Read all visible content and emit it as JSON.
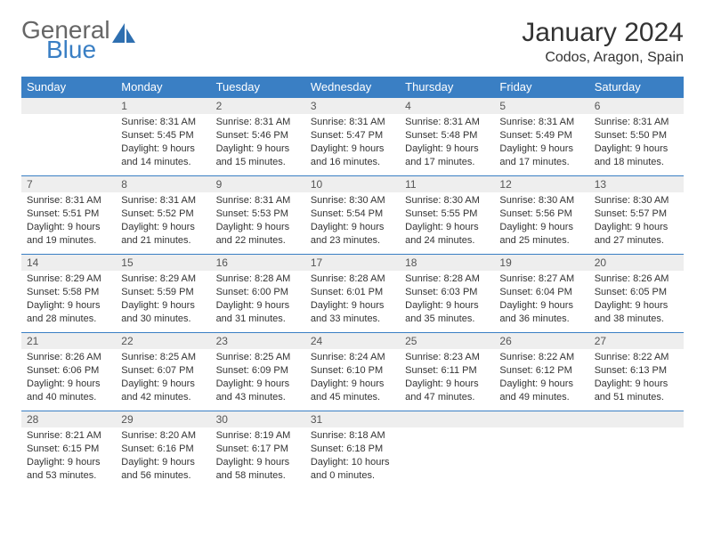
{
  "logo": {
    "text1": "General",
    "text2": "Blue"
  },
  "title": "January 2024",
  "location": "Codos, Aragon, Spain",
  "colors": {
    "header_bg": "#3a7fc4",
    "header_text": "#ffffff",
    "daynum_bg": "#eeeeee",
    "row_border": "#3a7fc4"
  },
  "daynames": [
    "Sunday",
    "Monday",
    "Tuesday",
    "Wednesday",
    "Thursday",
    "Friday",
    "Saturday"
  ],
  "weeks": [
    [
      {
        "n": "",
        "lines": [
          "",
          "",
          "",
          ""
        ]
      },
      {
        "n": "1",
        "lines": [
          "Sunrise: 8:31 AM",
          "Sunset: 5:45 PM",
          "Daylight: 9 hours",
          "and 14 minutes."
        ]
      },
      {
        "n": "2",
        "lines": [
          "Sunrise: 8:31 AM",
          "Sunset: 5:46 PM",
          "Daylight: 9 hours",
          "and 15 minutes."
        ]
      },
      {
        "n": "3",
        "lines": [
          "Sunrise: 8:31 AM",
          "Sunset: 5:47 PM",
          "Daylight: 9 hours",
          "and 16 minutes."
        ]
      },
      {
        "n": "4",
        "lines": [
          "Sunrise: 8:31 AM",
          "Sunset: 5:48 PM",
          "Daylight: 9 hours",
          "and 17 minutes."
        ]
      },
      {
        "n": "5",
        "lines": [
          "Sunrise: 8:31 AM",
          "Sunset: 5:49 PM",
          "Daylight: 9 hours",
          "and 17 minutes."
        ]
      },
      {
        "n": "6",
        "lines": [
          "Sunrise: 8:31 AM",
          "Sunset: 5:50 PM",
          "Daylight: 9 hours",
          "and 18 minutes."
        ]
      }
    ],
    [
      {
        "n": "7",
        "lines": [
          "Sunrise: 8:31 AM",
          "Sunset: 5:51 PM",
          "Daylight: 9 hours",
          "and 19 minutes."
        ]
      },
      {
        "n": "8",
        "lines": [
          "Sunrise: 8:31 AM",
          "Sunset: 5:52 PM",
          "Daylight: 9 hours",
          "and 21 minutes."
        ]
      },
      {
        "n": "9",
        "lines": [
          "Sunrise: 8:31 AM",
          "Sunset: 5:53 PM",
          "Daylight: 9 hours",
          "and 22 minutes."
        ]
      },
      {
        "n": "10",
        "lines": [
          "Sunrise: 8:30 AM",
          "Sunset: 5:54 PM",
          "Daylight: 9 hours",
          "and 23 minutes."
        ]
      },
      {
        "n": "11",
        "lines": [
          "Sunrise: 8:30 AM",
          "Sunset: 5:55 PM",
          "Daylight: 9 hours",
          "and 24 minutes."
        ]
      },
      {
        "n": "12",
        "lines": [
          "Sunrise: 8:30 AM",
          "Sunset: 5:56 PM",
          "Daylight: 9 hours",
          "and 25 minutes."
        ]
      },
      {
        "n": "13",
        "lines": [
          "Sunrise: 8:30 AM",
          "Sunset: 5:57 PM",
          "Daylight: 9 hours",
          "and 27 minutes."
        ]
      }
    ],
    [
      {
        "n": "14",
        "lines": [
          "Sunrise: 8:29 AM",
          "Sunset: 5:58 PM",
          "Daylight: 9 hours",
          "and 28 minutes."
        ]
      },
      {
        "n": "15",
        "lines": [
          "Sunrise: 8:29 AM",
          "Sunset: 5:59 PM",
          "Daylight: 9 hours",
          "and 30 minutes."
        ]
      },
      {
        "n": "16",
        "lines": [
          "Sunrise: 8:28 AM",
          "Sunset: 6:00 PM",
          "Daylight: 9 hours",
          "and 31 minutes."
        ]
      },
      {
        "n": "17",
        "lines": [
          "Sunrise: 8:28 AM",
          "Sunset: 6:01 PM",
          "Daylight: 9 hours",
          "and 33 minutes."
        ]
      },
      {
        "n": "18",
        "lines": [
          "Sunrise: 8:28 AM",
          "Sunset: 6:03 PM",
          "Daylight: 9 hours",
          "and 35 minutes."
        ]
      },
      {
        "n": "19",
        "lines": [
          "Sunrise: 8:27 AM",
          "Sunset: 6:04 PM",
          "Daylight: 9 hours",
          "and 36 minutes."
        ]
      },
      {
        "n": "20",
        "lines": [
          "Sunrise: 8:26 AM",
          "Sunset: 6:05 PM",
          "Daylight: 9 hours",
          "and 38 minutes."
        ]
      }
    ],
    [
      {
        "n": "21",
        "lines": [
          "Sunrise: 8:26 AM",
          "Sunset: 6:06 PM",
          "Daylight: 9 hours",
          "and 40 minutes."
        ]
      },
      {
        "n": "22",
        "lines": [
          "Sunrise: 8:25 AM",
          "Sunset: 6:07 PM",
          "Daylight: 9 hours",
          "and 42 minutes."
        ]
      },
      {
        "n": "23",
        "lines": [
          "Sunrise: 8:25 AM",
          "Sunset: 6:09 PM",
          "Daylight: 9 hours",
          "and 43 minutes."
        ]
      },
      {
        "n": "24",
        "lines": [
          "Sunrise: 8:24 AM",
          "Sunset: 6:10 PM",
          "Daylight: 9 hours",
          "and 45 minutes."
        ]
      },
      {
        "n": "25",
        "lines": [
          "Sunrise: 8:23 AM",
          "Sunset: 6:11 PM",
          "Daylight: 9 hours",
          "and 47 minutes."
        ]
      },
      {
        "n": "26",
        "lines": [
          "Sunrise: 8:22 AM",
          "Sunset: 6:12 PM",
          "Daylight: 9 hours",
          "and 49 minutes."
        ]
      },
      {
        "n": "27",
        "lines": [
          "Sunrise: 8:22 AM",
          "Sunset: 6:13 PM",
          "Daylight: 9 hours",
          "and 51 minutes."
        ]
      }
    ],
    [
      {
        "n": "28",
        "lines": [
          "Sunrise: 8:21 AM",
          "Sunset: 6:15 PM",
          "Daylight: 9 hours",
          "and 53 minutes."
        ]
      },
      {
        "n": "29",
        "lines": [
          "Sunrise: 8:20 AM",
          "Sunset: 6:16 PM",
          "Daylight: 9 hours",
          "and 56 minutes."
        ]
      },
      {
        "n": "30",
        "lines": [
          "Sunrise: 8:19 AM",
          "Sunset: 6:17 PM",
          "Daylight: 9 hours",
          "and 58 minutes."
        ]
      },
      {
        "n": "31",
        "lines": [
          "Sunrise: 8:18 AM",
          "Sunset: 6:18 PM",
          "Daylight: 10 hours",
          "and 0 minutes."
        ]
      },
      {
        "n": "",
        "lines": [
          "",
          "",
          "",
          ""
        ]
      },
      {
        "n": "",
        "lines": [
          "",
          "",
          "",
          ""
        ]
      },
      {
        "n": "",
        "lines": [
          "",
          "",
          "",
          ""
        ]
      }
    ]
  ]
}
